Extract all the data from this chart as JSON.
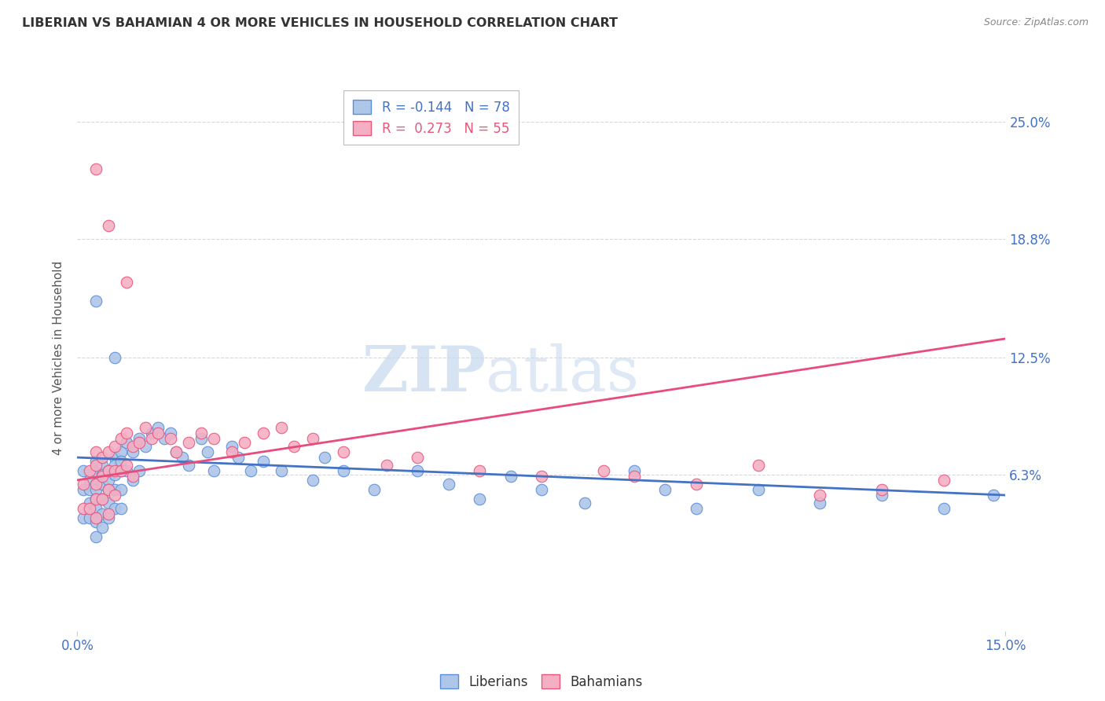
{
  "title": "LIBERIAN VS BAHAMIAN 4 OR MORE VEHICLES IN HOUSEHOLD CORRELATION CHART",
  "source": "Source: ZipAtlas.com",
  "ylabel": "4 or more Vehicles in Household",
  "xlim": [
    0.0,
    0.15
  ],
  "ylim": [
    -0.02,
    0.27
  ],
  "ytick_labels": [
    "6.3%",
    "12.5%",
    "18.8%",
    "25.0%"
  ],
  "ytick_vals": [
    0.063,
    0.125,
    0.188,
    0.25
  ],
  "xtick_vals": [
    0.0,
    0.15
  ],
  "xtick_labels": [
    "0.0%",
    "15.0%"
  ],
  "liberian_R": -0.144,
  "liberian_N": 78,
  "bahamian_R": 0.273,
  "bahamian_N": 55,
  "liberian_color": "#aec6e8",
  "bahamian_color": "#f4afc4",
  "liberian_edge_color": "#5b8dd9",
  "bahamian_edge_color": "#e8567a",
  "liberian_line_color": "#4472c4",
  "bahamian_line_color": "#e84c7d",
  "watermark_zip": "ZIP",
  "watermark_atlas": "atlas",
  "background_color": "#ffffff",
  "grid_color": "#d8d8d8",
  "tick_color": "#4472c4",
  "ylabel_color": "#555555",
  "title_color": "#333333",
  "source_color": "#888888",
  "liberian_x": [
    0.001,
    0.001,
    0.001,
    0.002,
    0.002,
    0.002,
    0.002,
    0.003,
    0.003,
    0.003,
    0.003,
    0.003,
    0.003,
    0.003,
    0.003,
    0.004,
    0.004,
    0.004,
    0.004,
    0.004,
    0.004,
    0.005,
    0.005,
    0.005,
    0.005,
    0.005,
    0.006,
    0.006,
    0.006,
    0.006,
    0.006,
    0.007,
    0.007,
    0.007,
    0.007,
    0.007,
    0.008,
    0.008,
    0.009,
    0.009,
    0.01,
    0.01,
    0.011,
    0.012,
    0.013,
    0.014,
    0.015,
    0.016,
    0.017,
    0.018,
    0.02,
    0.021,
    0.022,
    0.025,
    0.026,
    0.028,
    0.03,
    0.033,
    0.038,
    0.04,
    0.043,
    0.048,
    0.055,
    0.06,
    0.065,
    0.07,
    0.075,
    0.082,
    0.09,
    0.095,
    0.1,
    0.11,
    0.12,
    0.13,
    0.14,
    0.148,
    0.003,
    0.006
  ],
  "liberian_y": [
    0.065,
    0.055,
    0.04,
    0.06,
    0.055,
    0.048,
    0.04,
    0.07,
    0.065,
    0.058,
    0.055,
    0.05,
    0.045,
    0.038,
    0.03,
    0.068,
    0.063,
    0.058,
    0.05,
    0.042,
    0.035,
    0.065,
    0.06,
    0.055,
    0.048,
    0.04,
    0.072,
    0.068,
    0.063,
    0.055,
    0.045,
    0.075,
    0.07,
    0.065,
    0.055,
    0.045,
    0.08,
    0.065,
    0.075,
    0.06,
    0.082,
    0.065,
    0.078,
    0.085,
    0.088,
    0.082,
    0.085,
    0.075,
    0.072,
    0.068,
    0.082,
    0.075,
    0.065,
    0.078,
    0.072,
    0.065,
    0.07,
    0.065,
    0.06,
    0.072,
    0.065,
    0.055,
    0.065,
    0.058,
    0.05,
    0.062,
    0.055,
    0.048,
    0.065,
    0.055,
    0.045,
    0.055,
    0.048,
    0.052,
    0.045,
    0.052,
    0.155,
    0.125
  ],
  "bahamian_x": [
    0.001,
    0.001,
    0.002,
    0.002,
    0.003,
    0.003,
    0.003,
    0.003,
    0.003,
    0.004,
    0.004,
    0.004,
    0.005,
    0.005,
    0.005,
    0.005,
    0.006,
    0.006,
    0.006,
    0.007,
    0.007,
    0.008,
    0.008,
    0.009,
    0.009,
    0.01,
    0.011,
    0.012,
    0.013,
    0.015,
    0.016,
    0.018,
    0.02,
    0.022,
    0.025,
    0.027,
    0.03,
    0.033,
    0.035,
    0.038,
    0.043,
    0.05,
    0.055,
    0.065,
    0.075,
    0.085,
    0.09,
    0.1,
    0.11,
    0.12,
    0.13,
    0.14,
    0.003,
    0.005,
    0.008
  ],
  "bahamian_y": [
    0.058,
    0.045,
    0.065,
    0.045,
    0.075,
    0.068,
    0.058,
    0.05,
    0.04,
    0.072,
    0.062,
    0.05,
    0.075,
    0.065,
    0.055,
    0.042,
    0.078,
    0.065,
    0.052,
    0.082,
    0.065,
    0.085,
    0.068,
    0.078,
    0.062,
    0.08,
    0.088,
    0.082,
    0.085,
    0.082,
    0.075,
    0.08,
    0.085,
    0.082,
    0.075,
    0.08,
    0.085,
    0.088,
    0.078,
    0.082,
    0.075,
    0.068,
    0.072,
    0.065,
    0.062,
    0.065,
    0.062,
    0.058,
    0.068,
    0.052,
    0.055,
    0.06,
    0.225,
    0.195,
    0.165
  ]
}
